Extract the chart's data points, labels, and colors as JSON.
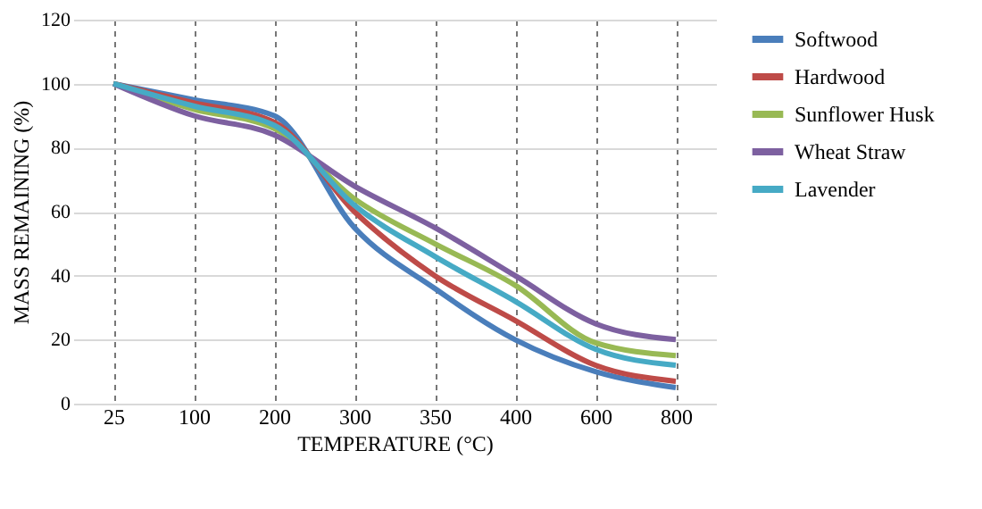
{
  "chart_data": {
    "type": "line",
    "xlabel": "TEMPERATURE (°C)",
    "ylabel": "MASS REMAINING (%)",
    "categories": [
      "25",
      "100",
      "200",
      "300",
      "350",
      "400",
      "600",
      "800"
    ],
    "series": [
      {
        "name": "Softwood",
        "color": "#4a7ebb",
        "values": [
          100,
          95,
          90,
          55,
          36,
          20,
          10,
          5
        ]
      },
      {
        "name": "Hardwood",
        "color": "#be4b48",
        "values": [
          100,
          94,
          88,
          60,
          40,
          26,
          12,
          7
        ]
      },
      {
        "name": "Sunflower Husk",
        "color": "#98b954",
        "values": [
          100,
          92,
          86,
          64,
          50,
          37,
          19,
          15
        ]
      },
      {
        "name": "Wheat Straw",
        "color": "#7d60a0",
        "values": [
          100,
          90,
          84,
          68,
          55,
          40,
          25,
          20
        ]
      },
      {
        "name": "Lavender",
        "color": "#46aac5",
        "values": [
          100,
          93,
          87,
          62,
          46,
          32,
          17,
          12
        ]
      }
    ],
    "ylim": [
      0,
      120
    ],
    "yticks": [
      0,
      20,
      40,
      60,
      80,
      100,
      120
    ],
    "grid": true,
    "legend": "right",
    "marker": "none",
    "line_style": "solid"
  }
}
